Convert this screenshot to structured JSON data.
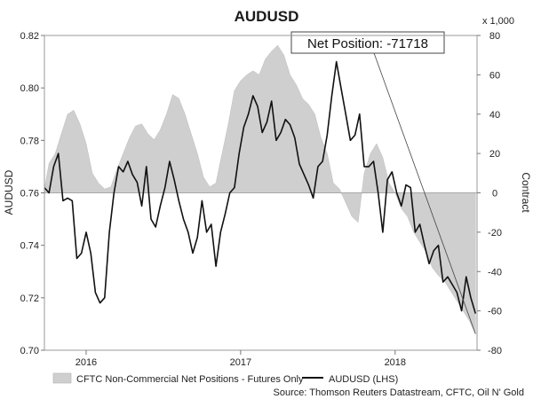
{
  "chart_data": {
    "type": "line",
    "title": "AUDUSD",
    "ylabel_left": "AUDUSD",
    "ylabel_right": "Contract",
    "right_axis_multiplier": "x 1,000",
    "ylim_left": [
      0.7,
      0.82
    ],
    "ylim_right": [
      -80,
      80
    ],
    "yticks_left": [
      "0.82",
      "0.80",
      "0.78",
      "0.76",
      "0.74",
      "0.72",
      "0.70"
    ],
    "yticks_right": [
      "80",
      "60",
      "40",
      "20",
      "0",
      "-20",
      "-40",
      "-60",
      "-80"
    ],
    "x_tick_labels": [
      "2016",
      "2017",
      "2018"
    ],
    "x_tick_positions": [
      2016.0,
      2017.0,
      2018.0
    ],
    "xlim": [
      2015.73,
      2018.53
    ],
    "grid": false,
    "series": [
      {
        "name": "CFTC Non-Commercial Net Positions - Futures Only",
        "kind": "area",
        "axis": "right",
        "color": "#cfcfcf",
        "x": [
          2015.73,
          2015.76,
          2015.8,
          2015.84,
          2015.88,
          2015.92,
          2015.96,
          2016.0,
          2016.04,
          2016.08,
          2016.12,
          2016.16,
          2016.2,
          2016.24,
          2016.28,
          2016.32,
          2016.36,
          2016.4,
          2016.44,
          2016.48,
          2016.52,
          2016.56,
          2016.6,
          2016.64,
          2016.68,
          2016.72,
          2016.76,
          2016.8,
          2016.84,
          2016.88,
          2016.92,
          2016.96,
          2017.0,
          2017.04,
          2017.08,
          2017.12,
          2017.16,
          2017.2,
          2017.24,
          2017.28,
          2017.32,
          2017.36,
          2017.4,
          2017.44,
          2017.48,
          2017.52,
          2017.56,
          2017.6,
          2017.64,
          2017.68,
          2017.72,
          2017.76,
          2017.8,
          2017.84,
          2017.88,
          2017.92,
          2017.96,
          2018.0,
          2018.04,
          2018.08,
          2018.12,
          2018.16,
          2018.2,
          2018.24,
          2018.28,
          2018.32,
          2018.36,
          2018.4,
          2018.44,
          2018.48,
          2018.52
        ],
        "values": [
          2,
          15,
          20,
          30,
          40,
          42,
          35,
          25,
          10,
          5,
          2,
          3,
          12,
          20,
          28,
          34,
          35,
          30,
          27,
          32,
          40,
          50,
          48,
          40,
          30,
          20,
          8,
          3,
          5,
          20,
          35,
          52,
          57,
          60,
          62,
          60,
          68,
          72,
          75,
          70,
          60,
          55,
          48,
          45,
          40,
          28,
          20,
          5,
          2,
          -5,
          -12,
          -15,
          10,
          20,
          25,
          18,
          5,
          0,
          -8,
          -12,
          -20,
          -25,
          -30,
          -38,
          -42,
          -45,
          -50,
          -55,
          -60,
          -65,
          -71.718
        ],
        "last_value_label": "Net Position: -71718"
      },
      {
        "name": "AUDUSD (LHS)",
        "kind": "line",
        "axis": "left",
        "color": "#111111",
        "x": [
          2015.73,
          2015.76,
          2015.79,
          2015.82,
          2015.85,
          2015.88,
          2015.91,
          2015.94,
          2015.97,
          2016.0,
          2016.03,
          2016.06,
          2016.09,
          2016.12,
          2016.15,
          2016.18,
          2016.21,
          2016.24,
          2016.27,
          2016.3,
          2016.33,
          2016.36,
          2016.39,
          2016.42,
          2016.45,
          2016.48,
          2016.51,
          2016.54,
          2016.57,
          2016.6,
          2016.63,
          2016.66,
          2016.69,
          2016.72,
          2016.75,
          2016.78,
          2016.81,
          2016.84,
          2016.87,
          2016.9,
          2016.93,
          2016.96,
          2016.99,
          2017.02,
          2017.05,
          2017.08,
          2017.11,
          2017.14,
          2017.17,
          2017.2,
          2017.23,
          2017.26,
          2017.29,
          2017.32,
          2017.35,
          2017.38,
          2017.41,
          2017.44,
          2017.47,
          2017.5,
          2017.53,
          2017.56,
          2017.59,
          2017.62,
          2017.65,
          2017.68,
          2017.71,
          2017.74,
          2017.77,
          2017.8,
          2017.83,
          2017.86,
          2017.89,
          2017.92,
          2017.95,
          2017.98,
          2018.01,
          2018.04,
          2018.07,
          2018.1,
          2018.13,
          2018.16,
          2018.19,
          2018.22,
          2018.25,
          2018.28,
          2018.31,
          2018.34,
          2018.37,
          2018.4,
          2018.43,
          2018.46,
          2018.49,
          2018.52
        ],
        "values": [
          0.762,
          0.76,
          0.77,
          0.775,
          0.757,
          0.758,
          0.757,
          0.735,
          0.737,
          0.745,
          0.737,
          0.722,
          0.718,
          0.72,
          0.745,
          0.76,
          0.77,
          0.768,
          0.772,
          0.767,
          0.764,
          0.755,
          0.77,
          0.75,
          0.747,
          0.755,
          0.762,
          0.772,
          0.765,
          0.757,
          0.75,
          0.745,
          0.737,
          0.743,
          0.757,
          0.745,
          0.748,
          0.732,
          0.745,
          0.752,
          0.76,
          0.762,
          0.775,
          0.785,
          0.79,
          0.797,
          0.793,
          0.783,
          0.787,
          0.795,
          0.78,
          0.783,
          0.788,
          0.786,
          0.781,
          0.771,
          0.767,
          0.763,
          0.758,
          0.77,
          0.772,
          0.782,
          0.797,
          0.81,
          0.8,
          0.79,
          0.78,
          0.782,
          0.79,
          0.77,
          0.77,
          0.772,
          0.76,
          0.745,
          0.765,
          0.768,
          0.76,
          0.755,
          0.763,
          0.762,
          0.745,
          0.748,
          0.74,
          0.733,
          0.738,
          0.74,
          0.726,
          0.728,
          0.725,
          0.722,
          0.715,
          0.728,
          0.72,
          0.714
        ]
      }
    ],
    "legend": {
      "placement": "bottom",
      "entries": [
        "CFTC Non-Commercial Net Positions - Futures Only",
        "AUDUSD (LHS)"
      ]
    },
    "annotations": [
      {
        "text": "Net Position: -71718"
      }
    ],
    "source": "Source: Thomson Reuters Datastream, CFTC, Oil N' Gold"
  }
}
